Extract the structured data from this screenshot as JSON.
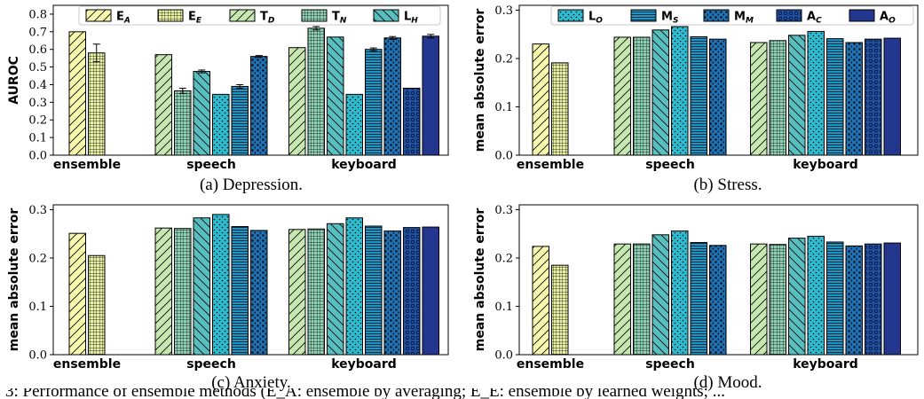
{
  "figure": {
    "caption_fragment": "3: Performance of ensemble methods (E_A: ensemble by averaging; E_E: ensemble by learned weights; ..."
  },
  "chart_data": [
    {
      "type": "bar",
      "caption": "(a) Depression.",
      "ylabel": "AUROC",
      "ylim": [
        0,
        0.85
      ],
      "yticks": [
        0.0,
        0.1,
        0.2,
        0.3,
        0.4,
        0.5,
        0.6,
        0.7,
        0.8
      ],
      "tick_format": "0.0",
      "groups": [
        {
          "label": "ensemble",
          "bars": [
            {
              "key": "E_A",
              "value": 0.7,
              "err": 0.0
            },
            {
              "key": "E_E",
              "value": 0.58,
              "err": 0.05
            }
          ]
        },
        {
          "label": "speech",
          "bars": [
            {
              "key": "T_D",
              "value": 0.57,
              "err": 0.0
            },
            {
              "key": "T_N",
              "value": 0.365,
              "err": 0.015
            },
            {
              "key": "L_H",
              "value": 0.475,
              "err": 0.008
            },
            {
              "key": "L_O",
              "value": 0.345,
              "err": 0.0
            },
            {
              "key": "M_S",
              "value": 0.39,
              "err": 0.01
            },
            {
              "key": "M_M",
              "value": 0.56,
              "err": 0.005
            }
          ]
        },
        {
          "label": "keyboard",
          "bars": [
            {
              "key": "T_D",
              "value": 0.61,
              "err": 0.0
            },
            {
              "key": "T_N",
              "value": 0.72,
              "err": 0.01
            },
            {
              "key": "L_H",
              "value": 0.67,
              "err": 0.0
            },
            {
              "key": "L_O",
              "value": 0.345,
              "err": 0.0
            },
            {
              "key": "M_S",
              "value": 0.6,
              "err": 0.008
            },
            {
              "key": "M_M",
              "value": 0.665,
              "err": 0.008
            },
            {
              "key": "A_C",
              "value": 0.38,
              "err": 0.0
            },
            {
              "key": "A_O",
              "value": 0.675,
              "err": 0.01
            }
          ]
        }
      ],
      "legend": {
        "placement": "top",
        "keys": [
          "E_A",
          "E_E",
          "T_D",
          "T_N",
          "L_H"
        ]
      }
    },
    {
      "type": "bar",
      "caption": "(b) Stress.",
      "ylabel": "mean absolute error",
      "ylim": [
        0,
        0.31
      ],
      "yticks": [
        0.0,
        0.1,
        0.2,
        0.3
      ],
      "tick_format": "0.0",
      "groups": [
        {
          "label": "ensemble",
          "bars": [
            {
              "key": "E_A",
              "value": 0.23
            },
            {
              "key": "E_E",
              "value": 0.191
            }
          ]
        },
        {
          "label": "speech",
          "bars": [
            {
              "key": "T_D",
              "value": 0.244
            },
            {
              "key": "T_N",
              "value": 0.244
            },
            {
              "key": "L_H",
              "value": 0.259
            },
            {
              "key": "L_O",
              "value": 0.266
            },
            {
              "key": "M_S",
              "value": 0.245
            },
            {
              "key": "M_M",
              "value": 0.24
            }
          ]
        },
        {
          "label": "keyboard",
          "bars": [
            {
              "key": "T_D",
              "value": 0.233
            },
            {
              "key": "T_N",
              "value": 0.237
            },
            {
              "key": "L_H",
              "value": 0.248
            },
            {
              "key": "L_O",
              "value": 0.256
            },
            {
              "key": "M_S",
              "value": 0.241
            },
            {
              "key": "M_M",
              "value": 0.233
            },
            {
              "key": "A_C",
              "value": 0.24
            },
            {
              "key": "A_O",
              "value": 0.242
            }
          ]
        }
      ],
      "legend": {
        "placement": "top",
        "keys": [
          "L_O",
          "M_S",
          "M_M",
          "A_C",
          "A_O"
        ]
      }
    },
    {
      "type": "bar",
      "caption": "(c) Anxiety.",
      "ylabel": "mean absolute error",
      "ylim": [
        0,
        0.31
      ],
      "yticks": [
        0.0,
        0.1,
        0.2,
        0.3
      ],
      "tick_format": "0.0",
      "groups": [
        {
          "label": "ensemble",
          "bars": [
            {
              "key": "E_A",
              "value": 0.251
            },
            {
              "key": "E_E",
              "value": 0.205
            }
          ]
        },
        {
          "label": "speech",
          "bars": [
            {
              "key": "T_D",
              "value": 0.262
            },
            {
              "key": "T_N",
              "value": 0.261
            },
            {
              "key": "L_H",
              "value": 0.283
            },
            {
              "key": "L_O",
              "value": 0.29
            },
            {
              "key": "M_S",
              "value": 0.265
            },
            {
              "key": "M_M",
              "value": 0.257
            }
          ]
        },
        {
          "label": "keyboard",
          "bars": [
            {
              "key": "T_D",
              "value": 0.259
            },
            {
              "key": "T_N",
              "value": 0.26
            },
            {
              "key": "L_H",
              "value": 0.271
            },
            {
              "key": "L_O",
              "value": 0.283
            },
            {
              "key": "M_S",
              "value": 0.266
            },
            {
              "key": "M_M",
              "value": 0.256
            },
            {
              "key": "A_C",
              "value": 0.263
            },
            {
              "key": "A_O",
              "value": 0.264
            }
          ]
        }
      ],
      "legend": null
    },
    {
      "type": "bar",
      "caption": "(d) Mood.",
      "ylabel": "mean absolute error",
      "ylim": [
        0,
        0.31
      ],
      "yticks": [
        0.0,
        0.1,
        0.2,
        0.3
      ],
      "tick_format": "0.0",
      "groups": [
        {
          "label": "ensemble",
          "bars": [
            {
              "key": "E_A",
              "value": 0.224
            },
            {
              "key": "E_E",
              "value": 0.185
            }
          ]
        },
        {
          "label": "speech",
          "bars": [
            {
              "key": "T_D",
              "value": 0.229
            },
            {
              "key": "T_N",
              "value": 0.229
            },
            {
              "key": "L_H",
              "value": 0.248
            },
            {
              "key": "L_O",
              "value": 0.256
            },
            {
              "key": "M_S",
              "value": 0.232
            },
            {
              "key": "M_M",
              "value": 0.226
            }
          ]
        },
        {
          "label": "keyboard",
          "bars": [
            {
              "key": "T_D",
              "value": 0.229
            },
            {
              "key": "T_N",
              "value": 0.228
            },
            {
              "key": "L_H",
              "value": 0.241
            },
            {
              "key": "L_O",
              "value": 0.245
            },
            {
              "key": "M_S",
              "value": 0.233
            },
            {
              "key": "M_M",
              "value": 0.225
            },
            {
              "key": "A_C",
              "value": 0.229
            },
            {
              "key": "A_O",
              "value": 0.231
            }
          ]
        }
      ],
      "legend": null
    }
  ],
  "series_styles": {
    "E_A": {
      "label": "E",
      "sub": "A",
      "fill": "#f7f7ae",
      "pattern": "diag"
    },
    "E_E": {
      "label": "E",
      "sub": "E",
      "fill": "#e8f0a4",
      "pattern": "grid"
    },
    "T_D": {
      "label": "T",
      "sub": "D",
      "fill": "#c6e8b0",
      "pattern": "diag"
    },
    "T_N": {
      "label": "T",
      "sub": "N",
      "fill": "#8fd1b5",
      "pattern": "grid"
    },
    "L_H": {
      "label": "L",
      "sub": "H",
      "fill": "#58bfc0",
      "pattern": "backdiag"
    },
    "L_O": {
      "label": "L",
      "sub": "O",
      "fill": "#2ebbd0",
      "pattern": "dots"
    },
    "M_S": {
      "label": "M",
      "sub": "S",
      "fill": "#1e93c4",
      "pattern": "hlines"
    },
    "M_M": {
      "label": "M",
      "sub": "M",
      "fill": "#2172b4",
      "pattern": "stars"
    },
    "A_C": {
      "label": "A",
      "sub": "C",
      "fill": "#1f4fa3",
      "pattern": "circles"
    },
    "A_O": {
      "label": "A",
      "sub": "O",
      "fill": "#24378f",
      "pattern": "none"
    }
  }
}
